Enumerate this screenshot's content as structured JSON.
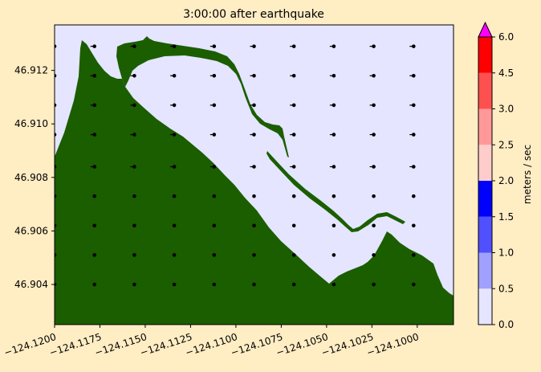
{
  "chart_data": {
    "type": "heatmap",
    "title": "3:00:00 after earthquake",
    "xlabel": "",
    "ylabel": "",
    "xlim": [
      -124.12,
      -124.098
    ],
    "ylim": [
      46.9025,
      46.9137
    ],
    "x_ticks": [
      -124.12,
      -124.1175,
      -124.115,
      -124.1125,
      -124.11,
      -124.1075,
      -124.105,
      -124.1025,
      -124.1
    ],
    "x_tick_labels": [
      "−124.1200",
      "−124.1175",
      "−124.1150",
      "−124.1125",
      "−124.1100",
      "−124.1075",
      "−124.1050",
      "−124.1025",
      "−124.1000"
    ],
    "y_ticks": [
      46.904,
      46.906,
      46.908,
      46.91,
      46.912
    ],
    "y_tick_labels": [
      "46.904",
      "46.906",
      "46.908",
      "46.910",
      "46.912"
    ],
    "background_speed_bin": "0.0-0.5",
    "land_color": "#1a5e00",
    "water_color": "#e5e5ff",
    "colorbar": {
      "label": "meters / sec",
      "bounds": [
        0.0,
        0.5,
        1.0,
        1.5,
        2.0,
        2.5,
        3.0,
        4.5,
        6.0
      ],
      "tick_labels": [
        "0.0",
        "0.5",
        "1.0",
        "1.5",
        "2.0",
        "2.5",
        "3.0",
        "4.5",
        "6.0"
      ],
      "colors": [
        "#e5e5ff",
        "#a0a0ff",
        "#5050ff",
        "#0000ff",
        "#ffcccc",
        "#ff9999",
        "#ff5050",
        "#ff0000"
      ],
      "extend_max_color": "#ff00ff"
    },
    "velocity_grid": {
      "x": [
        -124.12,
        -124.1178,
        -124.1156,
        -124.1134,
        -124.1112,
        -124.109,
        -124.1068,
        -124.1046,
        -124.1024,
        -124.1002
      ],
      "y": [
        46.904,
        46.9051,
        46.9062,
        46.9073,
        46.9084,
        46.9096,
        46.9107,
        46.9118,
        46.9129
      ],
      "arrow_rows": [
        46.9084,
        46.9096,
        46.9107,
        46.9118,
        46.9129
      ]
    }
  }
}
